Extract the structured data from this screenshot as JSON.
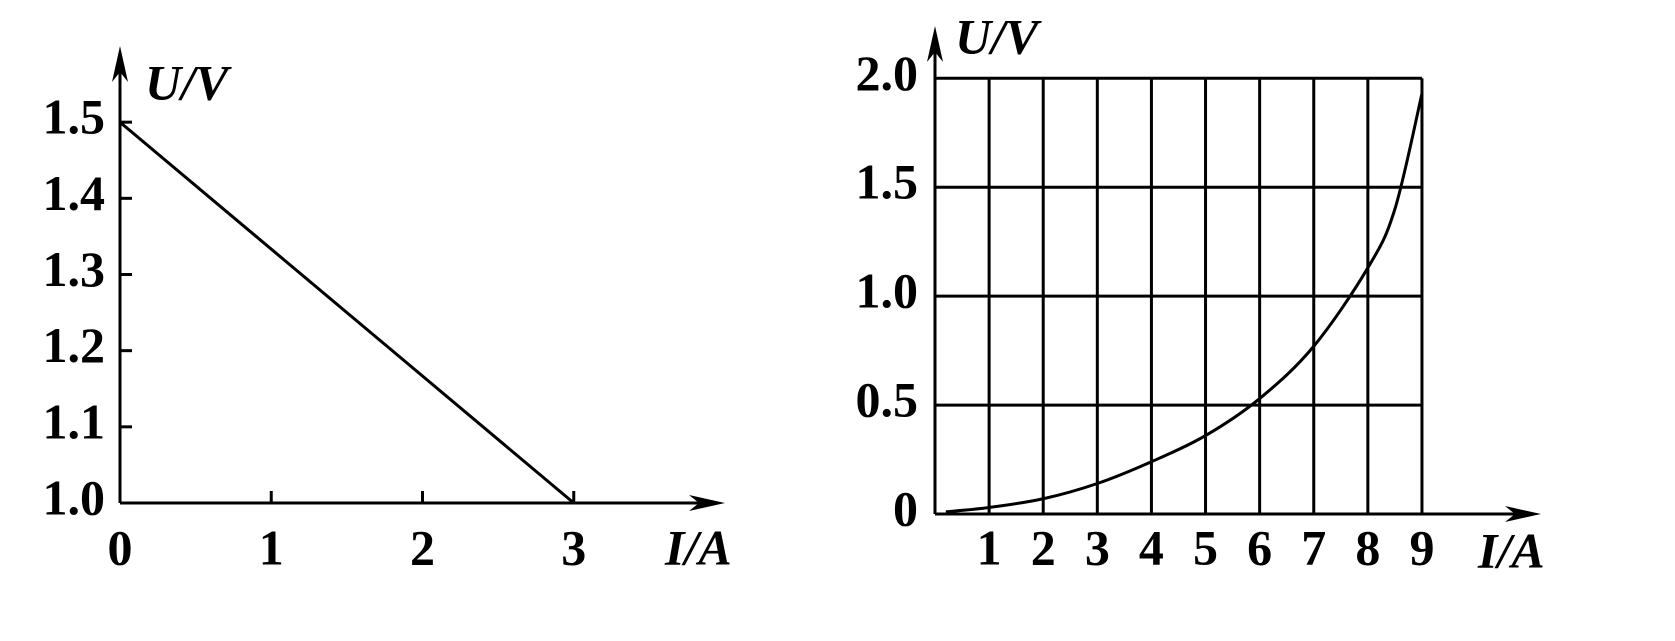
{
  "chart_data": [
    {
      "type": "line",
      "x": [
        0,
        3
      ],
      "values": [
        1.5,
        1.0
      ],
      "color": "#000000",
      "xlim": [
        0,
        4
      ],
      "ylim": [
        1.0,
        1.6
      ],
      "xticks": [
        0,
        1,
        2,
        3
      ],
      "yticks": [
        {
          "value": 1,
          "label": "1.0"
        },
        1.1,
        1.2,
        1.3,
        1.4,
        1.5
      ],
      "xlabel": "I/A",
      "ylabel": "U/V",
      "grid": false
    },
    {
      "type": "line",
      "x": [
        0.2,
        1,
        2,
        3,
        4,
        5,
        6,
        7,
        8,
        8.5,
        9
      ],
      "values": [
        0.01,
        0.03,
        0.07,
        0.14,
        0.24,
        0.36,
        0.53,
        0.77,
        1.13,
        1.4,
        1.93
      ],
      "color": "#000000",
      "xlim": [
        0,
        11.2
      ],
      "ylim": [
        0,
        2.24
      ],
      "xticks": [
        1,
        2,
        3,
        4,
        5,
        6,
        7,
        8,
        9
      ],
      "yticks": [
        0,
        0.5,
        {
          "value": 1,
          "label": "1.0"
        },
        1.5,
        {
          "value": 2,
          "label": "2.0"
        }
      ],
      "xlabel": "I/A",
      "ylabel": "U/V",
      "grid": true
    }
  ]
}
